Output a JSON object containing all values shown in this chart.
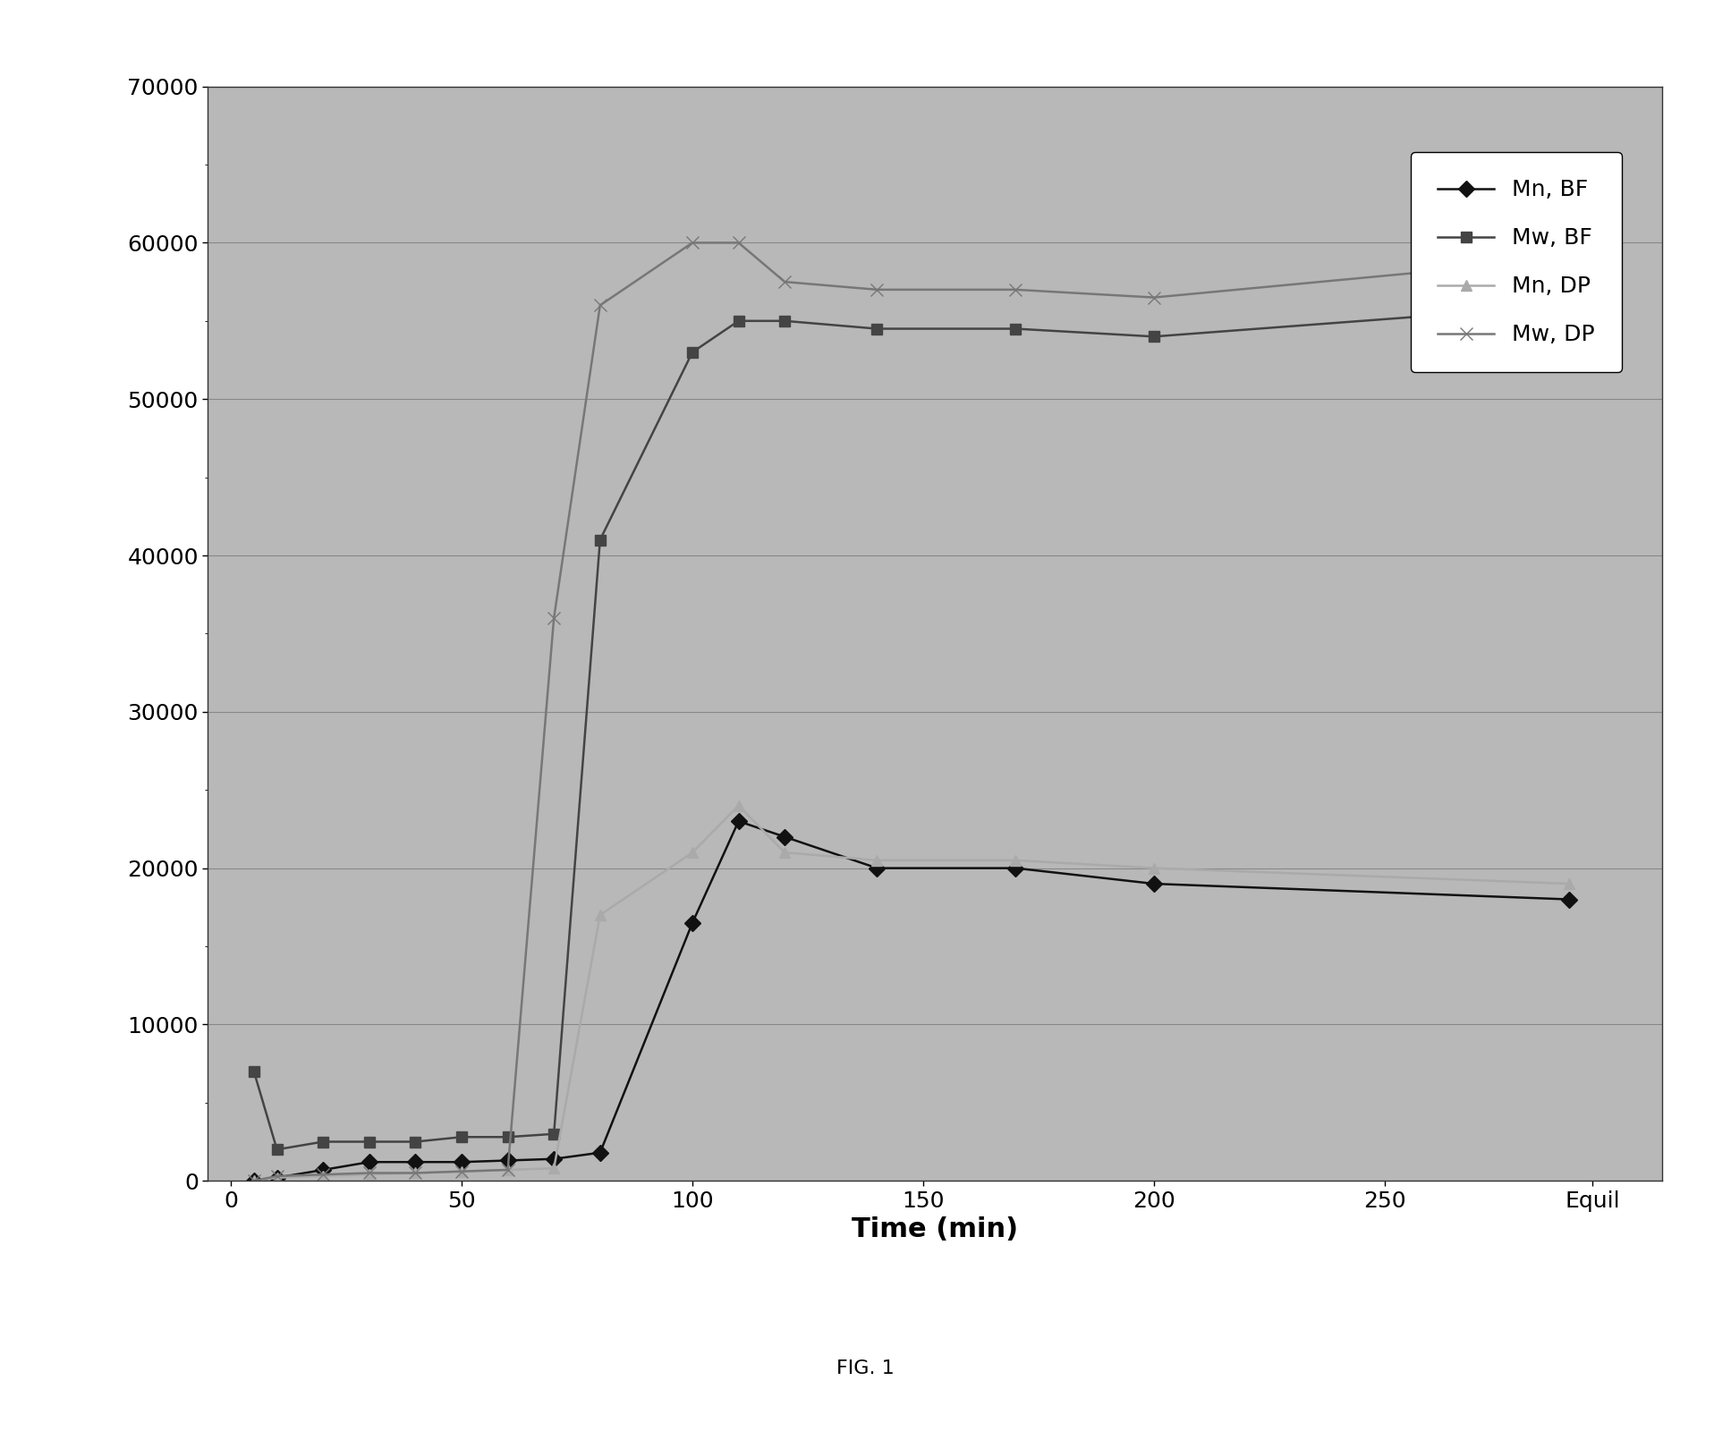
{
  "title": "",
  "xlabel": "Time (min)",
  "ylabel": "",
  "fig_caption": "FIG. 1",
  "fig_bg_color": "#ffffff",
  "plot_bg_color": "#b8b8b8",
  "ylim": [
    0,
    70000
  ],
  "yticks": [
    0,
    10000,
    20000,
    30000,
    40000,
    50000,
    60000,
    70000
  ],
  "xticks_numeric": [
    0,
    50,
    100,
    150,
    200,
    250
  ],
  "xtick_labels": [
    "0",
    "50",
    "100",
    "150",
    "200",
    "250"
  ],
  "x_equil_label": "Equil",
  "x_equil_pos": 295,
  "xlim": [
    -5,
    310
  ],
  "series": {
    "Mn_BF": {
      "label": "Mn, BF",
      "x": [
        5,
        10,
        20,
        30,
        40,
        50,
        60,
        70,
        80,
        100,
        110,
        120,
        140,
        170,
        200,
        290
      ],
      "y": [
        0,
        200,
        700,
        1200,
        1200,
        1200,
        1300,
        1400,
        1800,
        16500,
        23000,
        22000,
        20000,
        20000,
        19000,
        18000
      ],
      "color": "#111111",
      "marker": "D",
      "markersize": 9,
      "linestyle": "-",
      "linewidth": 1.8
    },
    "Mw_BF": {
      "label": "Mw, BF",
      "x": [
        5,
        10,
        20,
        30,
        40,
        50,
        60,
        70,
        80,
        100,
        110,
        120,
        140,
        170,
        200,
        290
      ],
      "y": [
        7000,
        2000,
        2500,
        2500,
        2500,
        2800,
        2800,
        3000,
        41000,
        53000,
        55000,
        55000,
        54500,
        54500,
        54000,
        56000
      ],
      "color": "#444444",
      "marker": "s",
      "markersize": 9,
      "linestyle": "-",
      "linewidth": 1.8
    },
    "Mn_DP": {
      "label": "Mn, DP",
      "x": [
        5,
        10,
        20,
        30,
        40,
        50,
        60,
        70,
        80,
        100,
        110,
        120,
        140,
        170,
        200,
        290
      ],
      "y": [
        0,
        200,
        300,
        400,
        500,
        600,
        700,
        800,
        17000,
        21000,
        24000,
        21000,
        20500,
        20500,
        20000,
        19000
      ],
      "color": "#aaaaaa",
      "marker": "^",
      "markersize": 9,
      "linestyle": "-",
      "linewidth": 1.8
    },
    "Mw_DP": {
      "label": "Mw, DP",
      "x": [
        5,
        10,
        20,
        30,
        40,
        50,
        60,
        70,
        80,
        100,
        110,
        120,
        140,
        170,
        200,
        290
      ],
      "y": [
        0,
        300,
        400,
        500,
        500,
        600,
        700,
        36000,
        56000,
        60000,
        60000,
        57500,
        57000,
        57000,
        56500,
        59000
      ],
      "color": "#777777",
      "marker": "x",
      "markersize": 10,
      "linestyle": "-",
      "linewidth": 1.8
    }
  },
  "xlabel_fontsize": 22,
  "xlabel_fontweight": "bold",
  "tick_fontsize": 18,
  "legend_fontsize": 18,
  "caption_fontsize": 16
}
